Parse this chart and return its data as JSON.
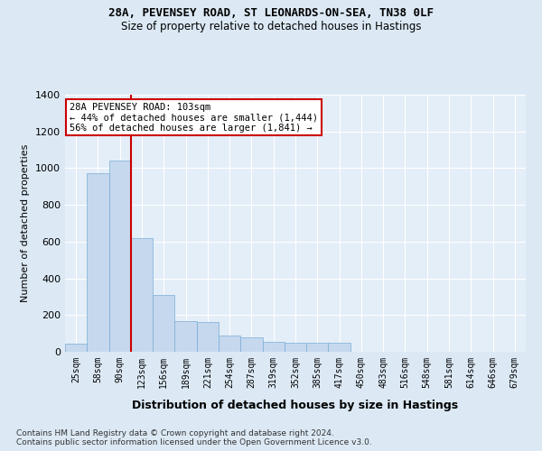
{
  "title1": "28A, PEVENSEY ROAD, ST LEONARDS-ON-SEA, TN38 0LF",
  "title2": "Size of property relative to detached houses in Hastings",
  "xlabel": "Distribution of detached houses by size in Hastings",
  "ylabel": "Number of detached properties",
  "bar_color": "#c5d8ee",
  "bar_edge_color": "#7aadd4",
  "bg_color": "#dce9f5",
  "plot_bg_color": "#e4eef8",
  "grid_color": "#ffffff",
  "vline_color": "#cc0000",
  "vline_position": 2.5,
  "categories": [
    "25sqm",
    "58sqm",
    "90sqm",
    "123sqm",
    "156sqm",
    "189sqm",
    "221sqm",
    "254sqm",
    "287sqm",
    "319sqm",
    "352sqm",
    "385sqm",
    "417sqm",
    "450sqm",
    "483sqm",
    "516sqm",
    "548sqm",
    "581sqm",
    "614sqm",
    "646sqm",
    "679sqm"
  ],
  "values": [
    45,
    975,
    1040,
    620,
    310,
    165,
    160,
    90,
    80,
    55,
    50,
    50,
    50,
    0,
    0,
    0,
    0,
    0,
    0,
    0,
    0
  ],
  "annotation_text": "28A PEVENSEY ROAD: 103sqm\n← 44% of detached houses are smaller (1,444)\n56% of detached houses are larger (1,841) →",
  "annotation_box_color": "#ffffff",
  "annotation_border_color": "#cc0000",
  "ylim": [
    0,
    1400
  ],
  "yticks": [
    0,
    200,
    400,
    600,
    800,
    1000,
    1200,
    1400
  ],
  "footnote": "Contains HM Land Registry data © Crown copyright and database right 2024.\nContains public sector information licensed under the Open Government Licence v3.0."
}
